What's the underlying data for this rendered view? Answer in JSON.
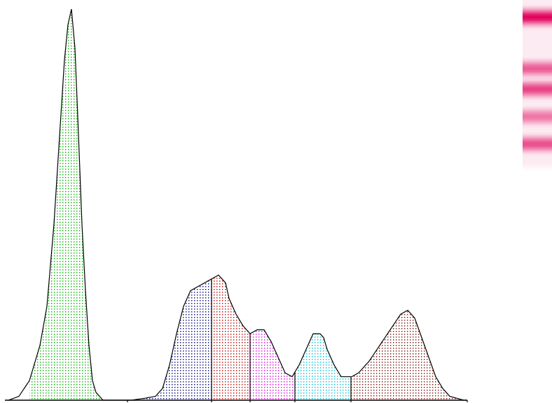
{
  "chart_data": {
    "type": "area",
    "title": "",
    "xlabel": "",
    "ylabel": "",
    "xlim": [
      0,
      660
    ],
    "ylim": [
      0,
      100
    ],
    "grid": false,
    "legend": "none",
    "x": [
      5,
      20,
      35,
      50,
      60,
      70,
      80,
      85,
      90,
      95,
      100,
      105,
      110,
      115,
      120,
      125,
      130,
      135,
      140,
      150,
      165,
      180,
      200,
      215,
      225,
      235,
      245,
      255,
      265,
      275,
      285,
      295,
      305,
      315,
      320,
      330,
      340,
      350,
      360,
      370,
      380,
      390,
      400,
      410,
      420,
      430,
      440,
      450,
      455,
      460,
      470,
      480,
      490,
      495,
      505,
      520,
      535,
      550,
      565,
      575,
      585,
      595,
      605,
      615,
      625,
      635,
      645,
      655,
      660
    ],
    "y": [
      0,
      1,
      5,
      14,
      24,
      45,
      73,
      87,
      96,
      100,
      90,
      68,
      45,
      28,
      14,
      5,
      2,
      1,
      0,
      0,
      0,
      0,
      0.5,
      1,
      3,
      9,
      17,
      24,
      28,
      29,
      30,
      31,
      32,
      30,
      26,
      22,
      19,
      17,
      18,
      18,
      15,
      11,
      7,
      6,
      9,
      13,
      17,
      17,
      16,
      13,
      9,
      6,
      6,
      6,
      7,
      10,
      14,
      18,
      22,
      23,
      21,
      16,
      11,
      6,
      3,
      1,
      0.5,
      0,
      0
    ],
    "series": [],
    "bands": [
      {
        "from": 35,
        "to": 145,
        "color": "#00b000"
      },
      {
        "from": 175,
        "to": 295,
        "color": "#00007a"
      },
      {
        "from": 295,
        "to": 350,
        "color": "#c00000"
      },
      {
        "from": 350,
        "to": 414,
        "color": "#e000e0"
      },
      {
        "from": 414,
        "to": 494,
        "color": "#00c0d8"
      },
      {
        "from": 494,
        "to": 660,
        "color": "#7a0a0a"
      }
    ],
    "dividers": [
      175,
      295,
      350,
      414,
      494,
      660
    ]
  },
  "gel_lane": {
    "bands": [
      {
        "center": 0.1,
        "intensity": 1.0
      },
      {
        "center": 0.25,
        "intensity": 0.05
      },
      {
        "center": 0.4,
        "intensity": 0.65
      },
      {
        "center": 0.52,
        "intensity": 0.75
      },
      {
        "center": 0.68,
        "intensity": 0.55
      },
      {
        "center": 0.84,
        "intensity": 0.7
      }
    ],
    "color": "#e0005a"
  }
}
